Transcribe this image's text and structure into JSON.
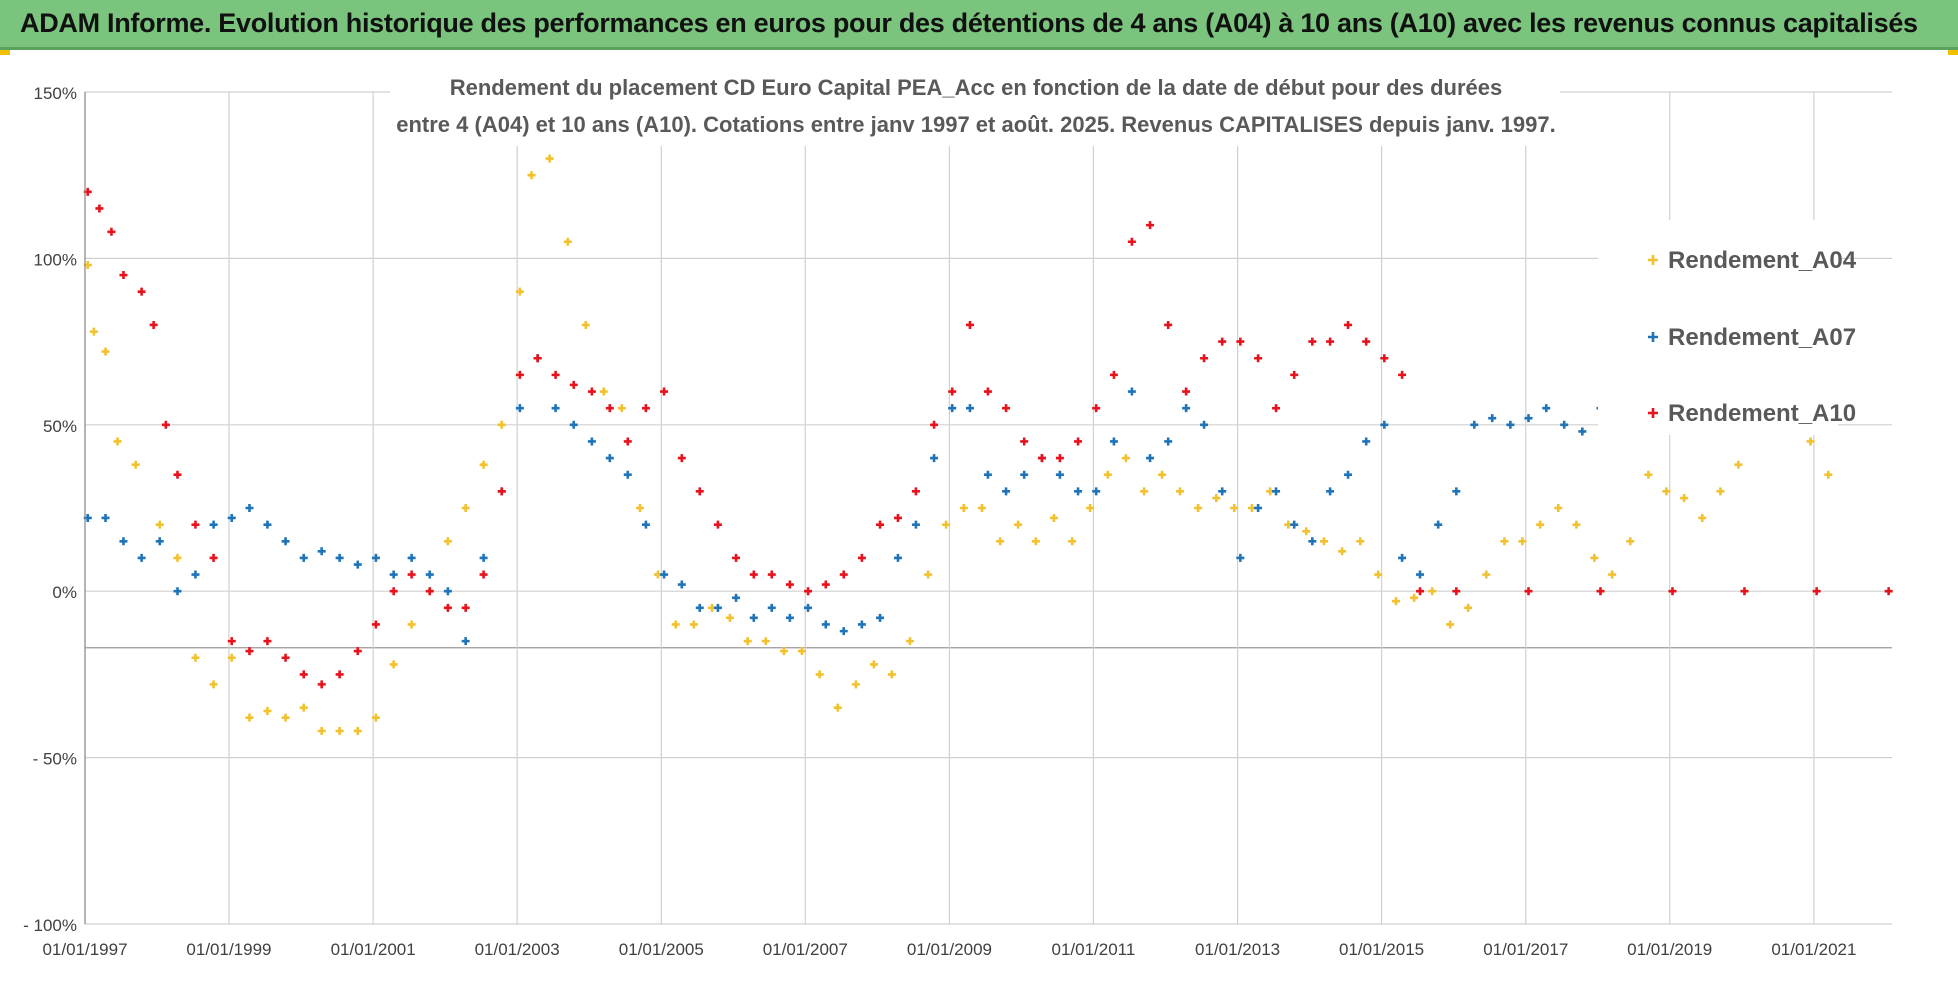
{
  "banner": {
    "title": "ADAM Informe. Evolution historique des performances en euros pour des détentions de 4 ans (A04) à 10 ans (A10) avec les revenus connus capitalisés"
  },
  "colors": {
    "banner_bg": "#7ac47d",
    "a04": "#f2c12e",
    "a07": "#1f74b8",
    "a10": "#e8121c",
    "grid": "#d0d0d0"
  },
  "chart_data": {
    "type": "scatter",
    "title_line1": "Rendement du placement CD Euro Capital PEA_Acc en fonction de la date de début pour des durées",
    "title_line2": "entre 4 (A04) et 10 ans (A10). Cotations entre janv 1997 et août. 2025. Revenus CAPITALISES depuis janv. 1997.",
    "xlabel": "",
    "ylabel": "",
    "x_range": [
      "1997-01-01",
      "2022-02-01"
    ],
    "x_ticks": [
      "01/01/1997",
      "01/01/1999",
      "01/01/2001",
      "01/01/2003",
      "01/01/2005",
      "01/01/2007",
      "01/01/2009",
      "01/01/2011",
      "01/01/2013",
      "01/01/2015",
      "01/01/2017",
      "01/01/2019",
      "01/01/2021"
    ],
    "y_range": [
      -100,
      150
    ],
    "y_ticks": [
      {
        "value": 150,
        "label": "150%"
      },
      {
        "value": 100,
        "label": "100%"
      },
      {
        "value": 50,
        "label": "50%"
      },
      {
        "value": 0,
        "label": "0%"
      },
      {
        "value": -50,
        "label": "- 50%"
      },
      {
        "value": -100,
        "label": "- 100%"
      }
    ],
    "grid": true,
    "legend_position": "right",
    "series": [
      {
        "name": "Rendement_A04",
        "color": "#f2c12e",
        "points": [
          [
            "1997-01",
            98
          ],
          [
            "1997-02",
            78
          ],
          [
            "1997-04",
            72
          ],
          [
            "1997-06",
            45
          ],
          [
            "1997-09",
            38
          ],
          [
            "1998-01",
            20
          ],
          [
            "1998-04",
            10
          ],
          [
            "1998-07",
            -20
          ],
          [
            "1998-10",
            -28
          ],
          [
            "1999-01",
            -20
          ],
          [
            "1999-04",
            -38
          ],
          [
            "1999-07",
            -36
          ],
          [
            "1999-10",
            -38
          ],
          [
            "2000-01",
            -35
          ],
          [
            "2000-04",
            -42
          ],
          [
            "2000-07",
            -42
          ],
          [
            "2000-10",
            -42
          ],
          [
            "2001-01",
            -38
          ],
          [
            "2001-04",
            -22
          ],
          [
            "2001-07",
            -10
          ],
          [
            "2001-10",
            0
          ],
          [
            "2002-01",
            15
          ],
          [
            "2002-04",
            25
          ],
          [
            "2002-07",
            38
          ],
          [
            "2002-10",
            50
          ],
          [
            "2003-01",
            90
          ],
          [
            "2003-03",
            125
          ],
          [
            "2003-06",
            130
          ],
          [
            "2003-09",
            105
          ],
          [
            "2003-12",
            80
          ],
          [
            "2004-03",
            60
          ],
          [
            "2004-06",
            55
          ],
          [
            "2004-09",
            25
          ],
          [
            "2004-12",
            5
          ],
          [
            "2005-03",
            -10
          ],
          [
            "2005-06",
            -10
          ],
          [
            "2005-09",
            -5
          ],
          [
            "2005-12",
            -8
          ],
          [
            "2006-03",
            -15
          ],
          [
            "2006-06",
            -15
          ],
          [
            "2006-09",
            -18
          ],
          [
            "2006-12",
            -18
          ],
          [
            "2007-03",
            -25
          ],
          [
            "2007-06",
            -35
          ],
          [
            "2007-09",
            -28
          ],
          [
            "2007-12",
            -22
          ],
          [
            "2008-03",
            -25
          ],
          [
            "2008-06",
            -15
          ],
          [
            "2008-09",
            5
          ],
          [
            "2008-12",
            20
          ],
          [
            "2009-03",
            25
          ],
          [
            "2009-06",
            25
          ],
          [
            "2009-09",
            15
          ],
          [
            "2009-12",
            20
          ],
          [
            "2010-03",
            15
          ],
          [
            "2010-06",
            22
          ],
          [
            "2010-09",
            15
          ],
          [
            "2010-12",
            25
          ],
          [
            "2011-03",
            35
          ],
          [
            "2011-06",
            40
          ],
          [
            "2011-09",
            30
          ],
          [
            "2011-12",
            35
          ],
          [
            "2012-03",
            30
          ],
          [
            "2012-06",
            25
          ],
          [
            "2012-09",
            28
          ],
          [
            "2012-12",
            25
          ],
          [
            "2013-03",
            25
          ],
          [
            "2013-06",
            30
          ],
          [
            "2013-09",
            20
          ],
          [
            "2013-12",
            18
          ],
          [
            "2014-03",
            15
          ],
          [
            "2014-06",
            12
          ],
          [
            "2014-09",
            15
          ],
          [
            "2014-12",
            5
          ],
          [
            "2015-03",
            -3
          ],
          [
            "2015-06",
            -2
          ],
          [
            "2015-09",
            0
          ],
          [
            "2015-12",
            -10
          ],
          [
            "2016-03",
            -5
          ],
          [
            "2016-06",
            5
          ],
          [
            "2016-09",
            15
          ],
          [
            "2016-12",
            15
          ],
          [
            "2017-03",
            20
          ],
          [
            "2017-06",
            25
          ],
          [
            "2017-09",
            20
          ],
          [
            "2017-12",
            10
          ],
          [
            "2018-03",
            5
          ],
          [
            "2018-06",
            15
          ],
          [
            "2018-09",
            35
          ],
          [
            "2018-12",
            30
          ],
          [
            "2019-03",
            28
          ],
          [
            "2019-06",
            22
          ],
          [
            "2019-09",
            30
          ],
          [
            "2019-12",
            38
          ],
          [
            "2020-03",
            50
          ],
          [
            "2020-06",
            55
          ],
          [
            "2020-09",
            52
          ],
          [
            "2020-12",
            45
          ],
          [
            "2021-03",
            35
          ]
        ]
      },
      {
        "name": "Rendement_A07",
        "color": "#1f74b8",
        "points": [
          [
            "1997-01",
            22
          ],
          [
            "1997-04",
            22
          ],
          [
            "1997-07",
            15
          ],
          [
            "1997-10",
            10
          ],
          [
            "1998-01",
            15
          ],
          [
            "1998-04",
            0
          ],
          [
            "1998-07",
            5
          ],
          [
            "1998-10",
            20
          ],
          [
            "1999-01",
            22
          ],
          [
            "1999-04",
            25
          ],
          [
            "1999-07",
            20
          ],
          [
            "1999-10",
            15
          ],
          [
            "2000-01",
            10
          ],
          [
            "2000-04",
            12
          ],
          [
            "2000-07",
            10
          ],
          [
            "2000-10",
            8
          ],
          [
            "2001-01",
            10
          ],
          [
            "2001-04",
            5
          ],
          [
            "2001-07",
            10
          ],
          [
            "2001-10",
            5
          ],
          [
            "2002-01",
            0
          ],
          [
            "2002-04",
            -15
          ],
          [
            "2002-07",
            10
          ],
          [
            "2002-10",
            30
          ],
          [
            "2003-01",
            55
          ],
          [
            "2003-04",
            70
          ],
          [
            "2003-07",
            55
          ],
          [
            "2003-10",
            50
          ],
          [
            "2004-01",
            45
          ],
          [
            "2004-04",
            40
          ],
          [
            "2004-07",
            35
          ],
          [
            "2004-10",
            20
          ],
          [
            "2005-01",
            5
          ],
          [
            "2005-04",
            2
          ],
          [
            "2005-07",
            -5
          ],
          [
            "2005-10",
            -5
          ],
          [
            "2006-01",
            -2
          ],
          [
            "2006-04",
            -8
          ],
          [
            "2006-07",
            -5
          ],
          [
            "2006-10",
            -8
          ],
          [
            "2007-01",
            -5
          ],
          [
            "2007-04",
            -10
          ],
          [
            "2007-07",
            -12
          ],
          [
            "2007-10",
            -10
          ],
          [
            "2008-01",
            -8
          ],
          [
            "2008-04",
            10
          ],
          [
            "2008-07",
            20
          ],
          [
            "2008-10",
            40
          ],
          [
            "2009-01",
            55
          ],
          [
            "2009-04",
            55
          ],
          [
            "2009-07",
            35
          ],
          [
            "2009-10",
            30
          ],
          [
            "2010-01",
            35
          ],
          [
            "2010-04",
            40
          ],
          [
            "2010-07",
            35
          ],
          [
            "2010-10",
            30
          ],
          [
            "2011-01",
            30
          ],
          [
            "2011-04",
            45
          ],
          [
            "2011-07",
            60
          ],
          [
            "2011-10",
            40
          ],
          [
            "2012-01",
            45
          ],
          [
            "2012-04",
            55
          ],
          [
            "2012-07",
            50
          ],
          [
            "2012-10",
            30
          ],
          [
            "2013-01",
            10
          ],
          [
            "2013-04",
            25
          ],
          [
            "2013-07",
            30
          ],
          [
            "2013-10",
            20
          ],
          [
            "2014-01",
            15
          ],
          [
            "2014-04",
            30
          ],
          [
            "2014-07",
            35
          ],
          [
            "2014-10",
            45
          ],
          [
            "2015-01",
            50
          ],
          [
            "2015-04",
            10
          ],
          [
            "2015-07",
            5
          ],
          [
            "2015-10",
            20
          ],
          [
            "2016-01",
            30
          ],
          [
            "2016-04",
            50
          ],
          [
            "2016-07",
            52
          ],
          [
            "2016-10",
            50
          ],
          [
            "2017-01",
            52
          ],
          [
            "2017-04",
            55
          ],
          [
            "2017-07",
            50
          ],
          [
            "2017-10",
            48
          ],
          [
            "2018-01",
            55
          ],
          [
            "2018-04",
            57
          ]
        ]
      },
      {
        "name": "Rendement_A10",
        "color": "#e8121c",
        "points": [
          [
            "1997-01",
            120
          ],
          [
            "1997-03",
            115
          ],
          [
            "1997-05",
            108
          ],
          [
            "1997-07",
            95
          ],
          [
            "1997-10",
            90
          ],
          [
            "1997-12",
            80
          ],
          [
            "1998-02",
            50
          ],
          [
            "1998-04",
            35
          ],
          [
            "1998-07",
            20
          ],
          [
            "1998-10",
            10
          ],
          [
            "1999-01",
            -15
          ],
          [
            "1999-04",
            -18
          ],
          [
            "1999-07",
            -15
          ],
          [
            "1999-10",
            -20
          ],
          [
            "2000-01",
            -25
          ],
          [
            "2000-04",
            -28
          ],
          [
            "2000-07",
            -25
          ],
          [
            "2000-10",
            -18
          ],
          [
            "2001-01",
            -10
          ],
          [
            "2001-04",
            0
          ],
          [
            "2001-07",
            5
          ],
          [
            "2001-10",
            0
          ],
          [
            "2002-01",
            -5
          ],
          [
            "2002-04",
            -5
          ],
          [
            "2002-07",
            5
          ],
          [
            "2002-10",
            30
          ],
          [
            "2003-01",
            65
          ],
          [
            "2003-04",
            70
          ],
          [
            "2003-07",
            65
          ],
          [
            "2003-10",
            62
          ],
          [
            "2004-01",
            60
          ],
          [
            "2004-04",
            55
          ],
          [
            "2004-07",
            45
          ],
          [
            "2004-10",
            55
          ],
          [
            "2005-01",
            60
          ],
          [
            "2005-04",
            40
          ],
          [
            "2005-07",
            30
          ],
          [
            "2005-10",
            20
          ],
          [
            "2006-01",
            10
          ],
          [
            "2006-04",
            5
          ],
          [
            "2006-07",
            5
          ],
          [
            "2006-10",
            2
          ],
          [
            "2007-01",
            0
          ],
          [
            "2007-04",
            2
          ],
          [
            "2007-07",
            5
          ],
          [
            "2007-10",
            10
          ],
          [
            "2008-01",
            20
          ],
          [
            "2008-04",
            22
          ],
          [
            "2008-07",
            30
          ],
          [
            "2008-10",
            50
          ],
          [
            "2009-01",
            60
          ],
          [
            "2009-04",
            80
          ],
          [
            "2009-07",
            60
          ],
          [
            "2009-10",
            55
          ],
          [
            "2010-01",
            45
          ],
          [
            "2010-04",
            40
          ],
          [
            "2010-07",
            40
          ],
          [
            "2010-10",
            45
          ],
          [
            "2011-01",
            55
          ],
          [
            "2011-04",
            65
          ],
          [
            "2011-07",
            105
          ],
          [
            "2011-10",
            110
          ],
          [
            "2012-01",
            80
          ],
          [
            "2012-04",
            60
          ],
          [
            "2012-07",
            70
          ],
          [
            "2012-10",
            75
          ],
          [
            "2013-01",
            75
          ],
          [
            "2013-04",
            70
          ],
          [
            "2013-07",
            55
          ],
          [
            "2013-10",
            65
          ],
          [
            "2014-01",
            75
          ],
          [
            "2014-04",
            75
          ],
          [
            "2014-07",
            80
          ],
          [
            "2014-10",
            75
          ],
          [
            "2015-01",
            70
          ],
          [
            "2015-04",
            65
          ],
          [
            "2015-07",
            0
          ],
          [
            "2016-01",
            0
          ],
          [
            "2017-01",
            0
          ],
          [
            "2018-01",
            0
          ],
          [
            "2019-01",
            0
          ],
          [
            "2020-01",
            0
          ],
          [
            "2021-01",
            0
          ],
          [
            "2022-01",
            0
          ]
        ]
      }
    ]
  }
}
